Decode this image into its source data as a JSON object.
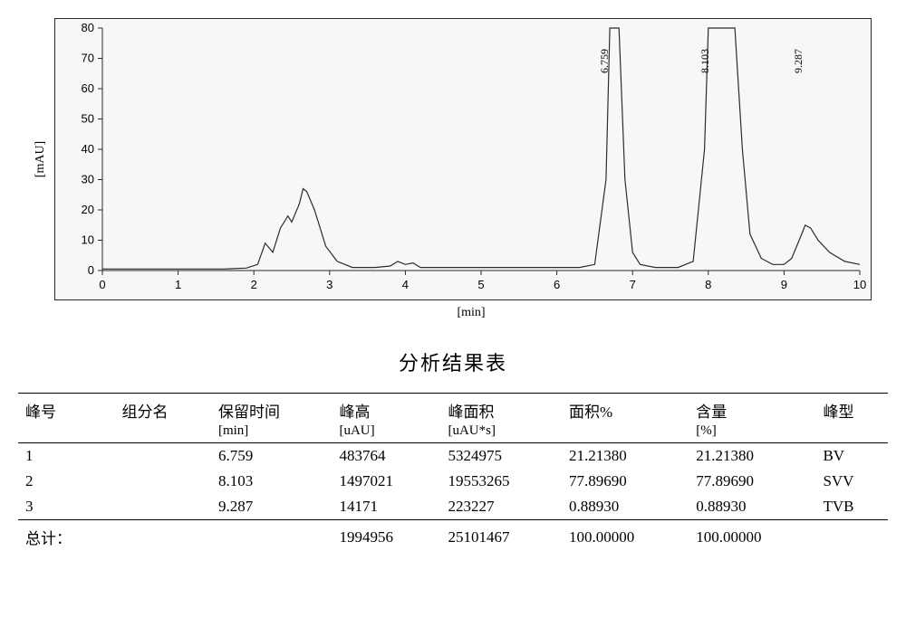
{
  "colors": {
    "background": "#ffffff",
    "plot_bg": "#f7f7f5",
    "axis": "#2a2a2a",
    "trace": "#2c2c30",
    "text": "#000000"
  },
  "chromatogram": {
    "type": "line",
    "xlabel": "[min]",
    "ylabel": "[mAU]",
    "xlim": [
      0,
      10
    ],
    "ylim": [
      0,
      80
    ],
    "xtick_step": 1,
    "ytick_step": 10,
    "xticks": [
      0,
      1,
      2,
      3,
      4,
      5,
      6,
      7,
      8,
      9,
      10
    ],
    "yticks": [
      0,
      10,
      20,
      30,
      40,
      50,
      60,
      70,
      80
    ],
    "line_width": 1.2,
    "line_color": "#2c2c30",
    "trace_points": [
      [
        0.0,
        0.5
      ],
      [
        1.0,
        0.5
      ],
      [
        1.6,
        0.5
      ],
      [
        1.9,
        0.8
      ],
      [
        2.05,
        2
      ],
      [
        2.15,
        9
      ],
      [
        2.25,
        6
      ],
      [
        2.35,
        14
      ],
      [
        2.45,
        18
      ],
      [
        2.5,
        16
      ],
      [
        2.55,
        19
      ],
      [
        2.6,
        22
      ],
      [
        2.65,
        27
      ],
      [
        2.7,
        26
      ],
      [
        2.8,
        20
      ],
      [
        2.95,
        8
      ],
      [
        3.1,
        3
      ],
      [
        3.3,
        1
      ],
      [
        3.6,
        1
      ],
      [
        3.8,
        1.5
      ],
      [
        3.9,
        3
      ],
      [
        4.0,
        2
      ],
      [
        4.1,
        2.5
      ],
      [
        4.2,
        1
      ],
      [
        5.0,
        1
      ],
      [
        5.8,
        1
      ],
      [
        6.3,
        1
      ],
      [
        6.5,
        2
      ],
      [
        6.65,
        30
      ],
      [
        6.7,
        80
      ],
      [
        6.72,
        120
      ],
      [
        6.8,
        120
      ],
      [
        6.82,
        80
      ],
      [
        6.9,
        30
      ],
      [
        7.0,
        6
      ],
      [
        7.1,
        2
      ],
      [
        7.3,
        1
      ],
      [
        7.6,
        1
      ],
      [
        7.8,
        3
      ],
      [
        7.95,
        40
      ],
      [
        8.0,
        80
      ],
      [
        8.05,
        120
      ],
      [
        8.3,
        120
      ],
      [
        8.35,
        80
      ],
      [
        8.45,
        40
      ],
      [
        8.55,
        12
      ],
      [
        8.7,
        4
      ],
      [
        8.85,
        2
      ],
      [
        9.0,
        2
      ],
      [
        9.1,
        4
      ],
      [
        9.2,
        10
      ],
      [
        9.28,
        15
      ],
      [
        9.35,
        14
      ],
      [
        9.45,
        10
      ],
      [
        9.6,
        6
      ],
      [
        9.8,
        3
      ],
      [
        10.0,
        2
      ]
    ],
    "peak_labels": [
      {
        "x": 6.72,
        "text": "6.759"
      },
      {
        "x": 8.05,
        "text": "8.103"
      },
      {
        "x": 9.28,
        "text": "9.287"
      }
    ]
  },
  "table": {
    "title": "分析结果表",
    "columns": [
      {
        "header": "峰号",
        "sub": ""
      },
      {
        "header": "组分名",
        "sub": ""
      },
      {
        "header": "保留时间",
        "sub": "[min]"
      },
      {
        "header": "峰高",
        "sub": "[uAU]"
      },
      {
        "header": "峰面积",
        "sub": "[uAU*s]"
      },
      {
        "header": "面积%",
        "sub": ""
      },
      {
        "header": "含量",
        "sub": "[%]"
      },
      {
        "header": "峰型",
        "sub": ""
      }
    ],
    "rows": [
      [
        "1",
        "",
        "6.759",
        "483764",
        "5324975",
        "21.21380",
        "21.21380",
        "BV"
      ],
      [
        "2",
        "",
        "8.103",
        "1497021",
        "19553265",
        "77.89690",
        "77.89690",
        "SVV"
      ],
      [
        "3",
        "",
        "9.287",
        "14171",
        "223227",
        "0.88930",
        "0.88930",
        "TVB"
      ]
    ],
    "total_label": "总计：",
    "total_row": [
      "",
      "",
      "",
      "1994956",
      "25101467",
      "100.00000",
      "100.00000",
      ""
    ]
  }
}
